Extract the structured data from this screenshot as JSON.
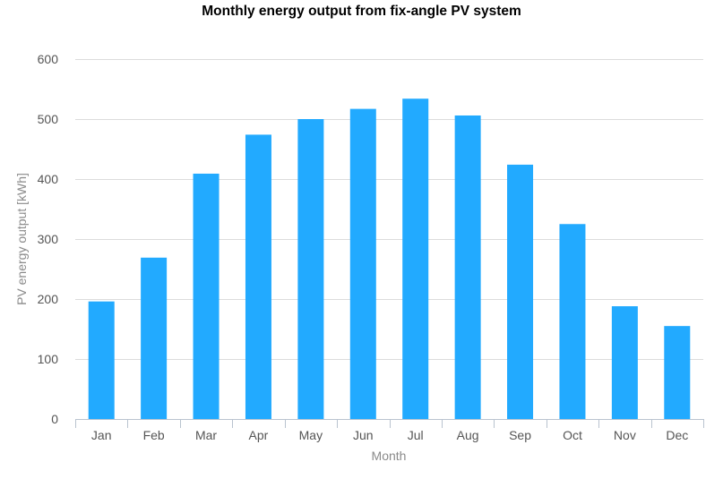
{
  "chart_data": {
    "type": "bar",
    "title": "Monthly energy output from fix-angle PV system",
    "xlabel": "Month",
    "ylabel": "PV energy output [kWh]",
    "categories": [
      "Jan",
      "Feb",
      "Mar",
      "Apr",
      "May",
      "Jun",
      "Jul",
      "Aug",
      "Sep",
      "Oct",
      "Nov",
      "Dec"
    ],
    "values": [
      196,
      269,
      409,
      474,
      500,
      517,
      534,
      506,
      424,
      325,
      188,
      155
    ],
    "ylim": [
      0,
      600
    ],
    "yticks": [
      0,
      100,
      200,
      300,
      400,
      500,
      600
    ],
    "grid": true,
    "legend": "none",
    "bar_color": "#22aaff"
  }
}
